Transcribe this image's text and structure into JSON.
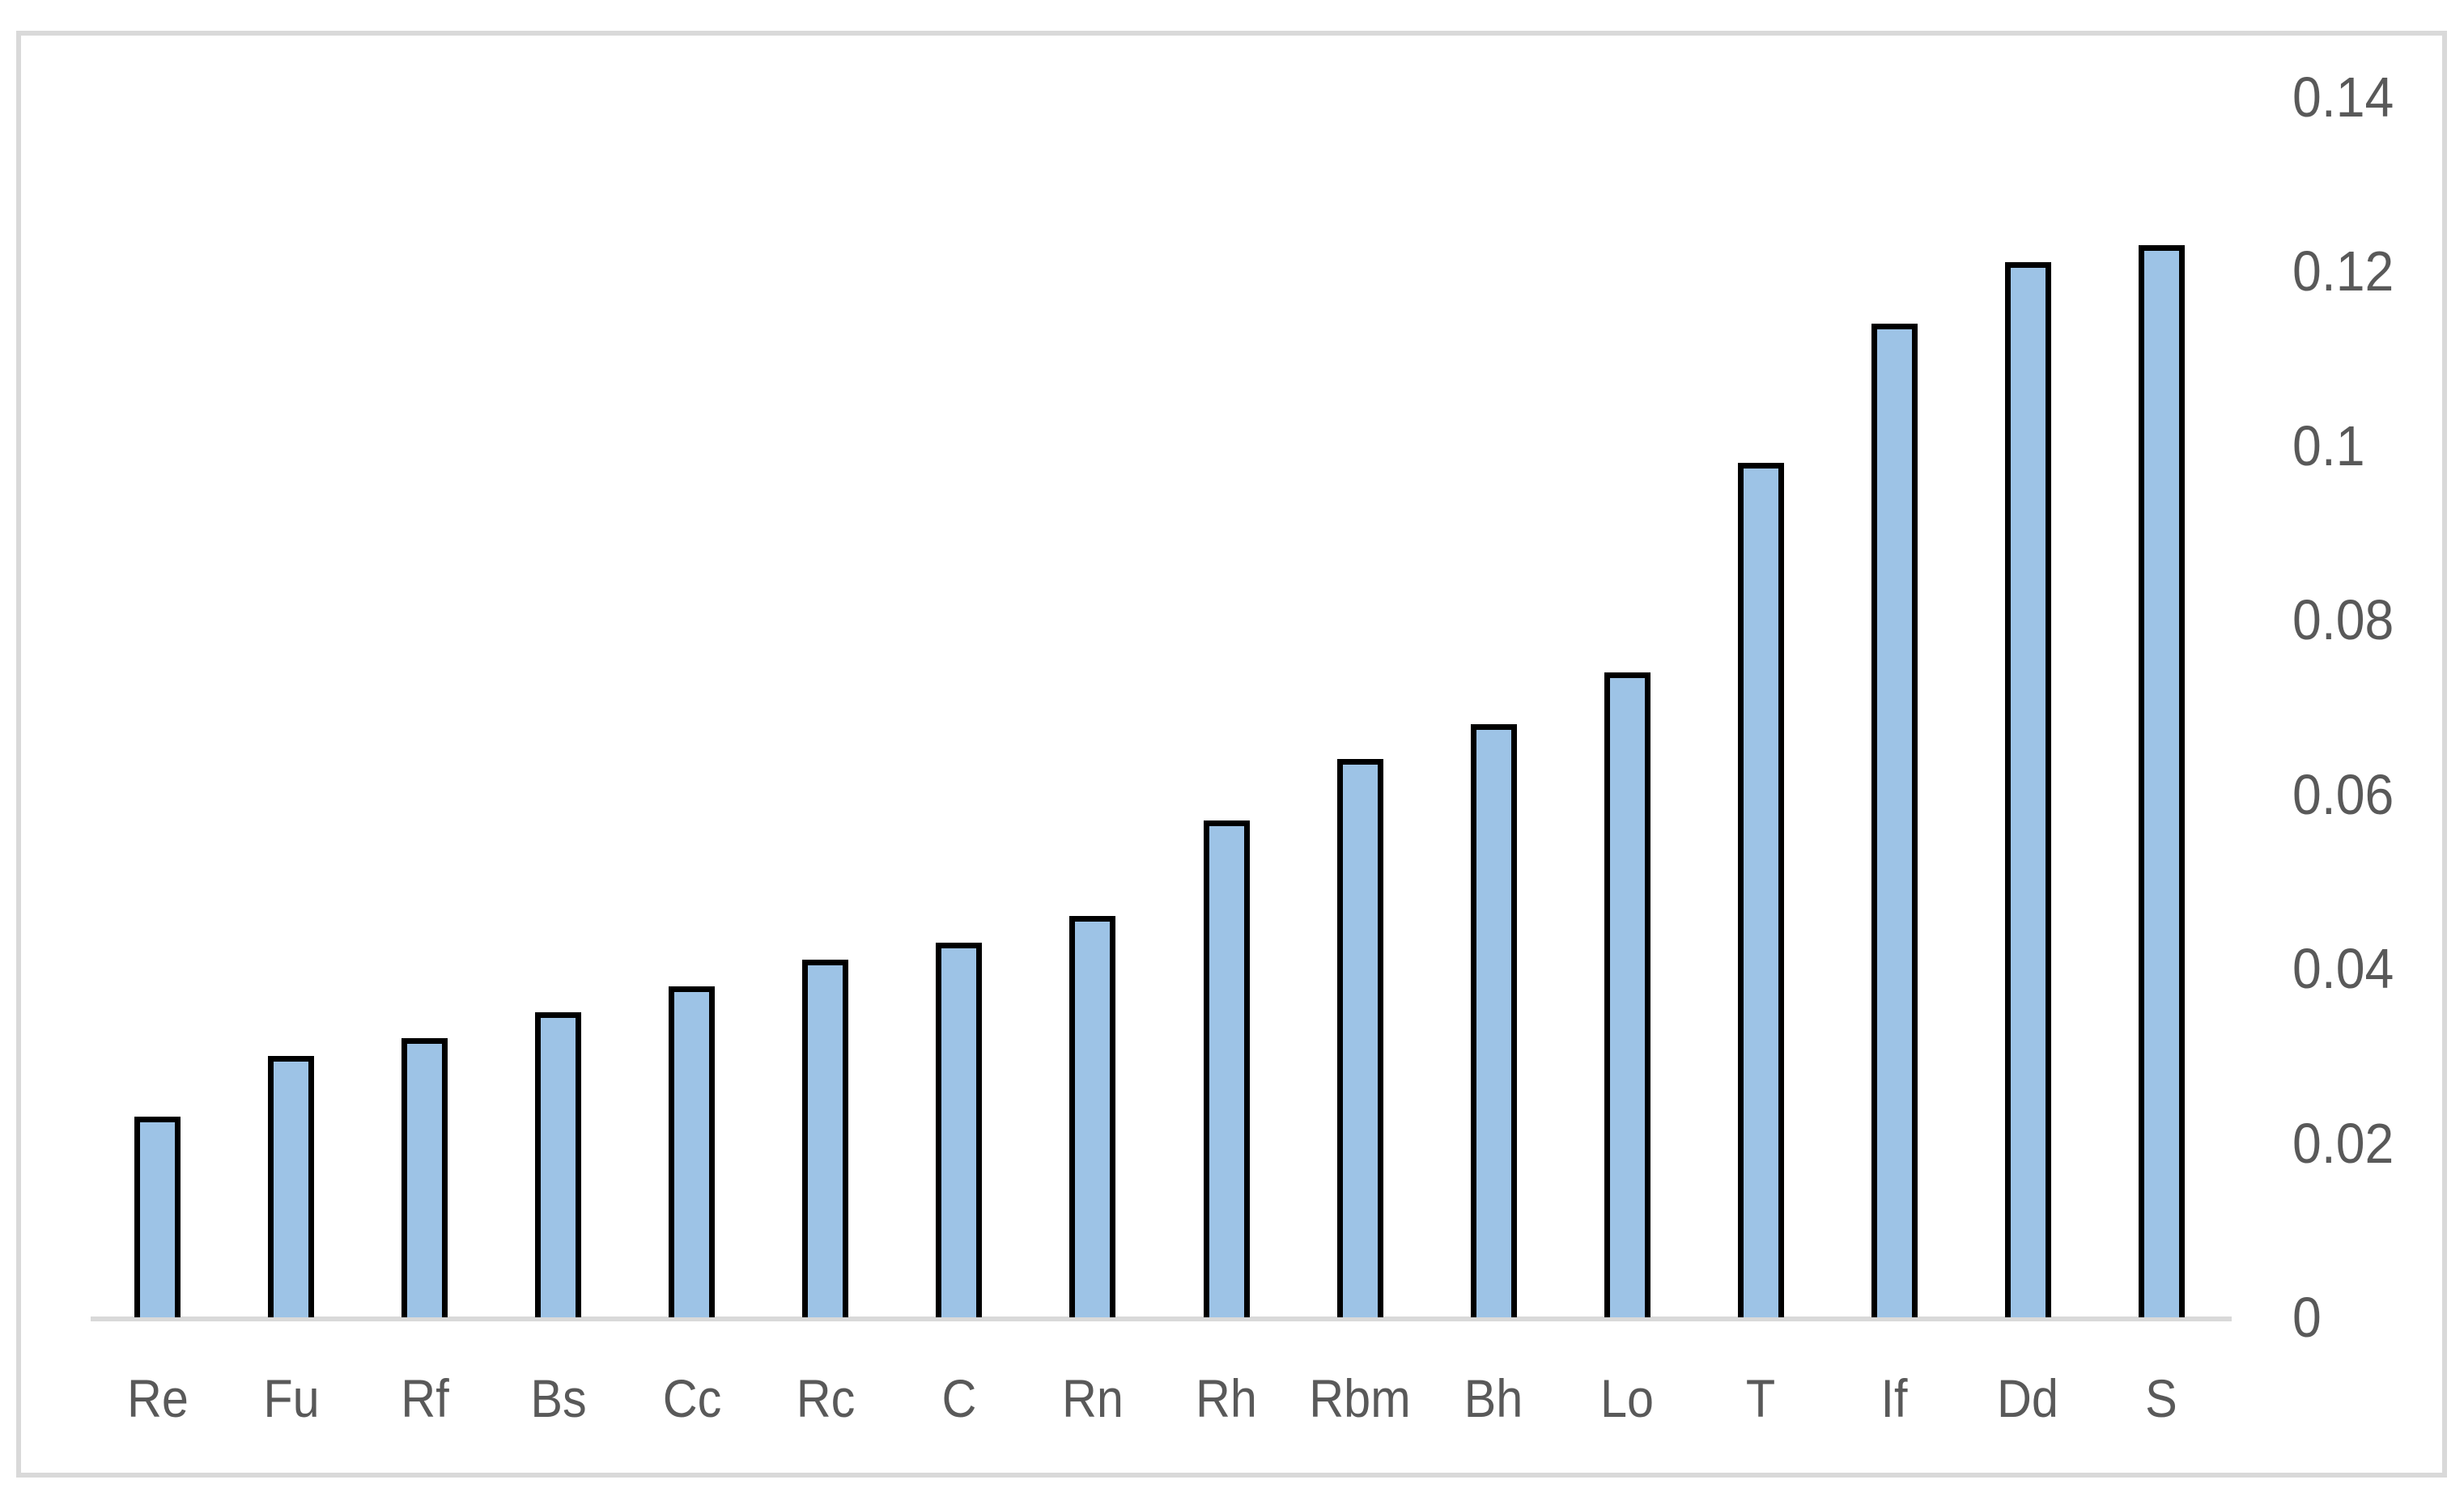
{
  "figure": {
    "background": "#FFFFFF",
    "frame_color": "#D9D9D9"
  },
  "chart_data": {
    "type": "bar",
    "title": "",
    "xlabel": "",
    "ylabel": "",
    "categories": [
      "Re",
      "Fu",
      "Rf",
      "Bs",
      "Cc",
      "Rc",
      "C",
      "Rn",
      "Rh",
      "Rbm",
      "Bh",
      "Lo",
      "T",
      "If",
      "Dd",
      "S"
    ],
    "values": [
      0.023,
      0.03,
      0.032,
      0.035,
      0.038,
      0.041,
      0.043,
      0.046,
      0.057,
      0.064,
      0.068,
      0.074,
      0.098,
      0.114,
      0.121,
      0.123
    ],
    "ylim": [
      0,
      0.14
    ],
    "ytick_labels": [
      "0",
      "0.02",
      "0.04",
      "0.06",
      "0.08",
      "0.1",
      "0.12",
      "0.14"
    ],
    "yaxis_side": "right",
    "grid": false,
    "legend": "none",
    "colors": {
      "bar_fill": "#9DC3E6",
      "bar_border": "#000000",
      "axis_line": "#D9D9D9",
      "tick_label": "#595959"
    }
  }
}
